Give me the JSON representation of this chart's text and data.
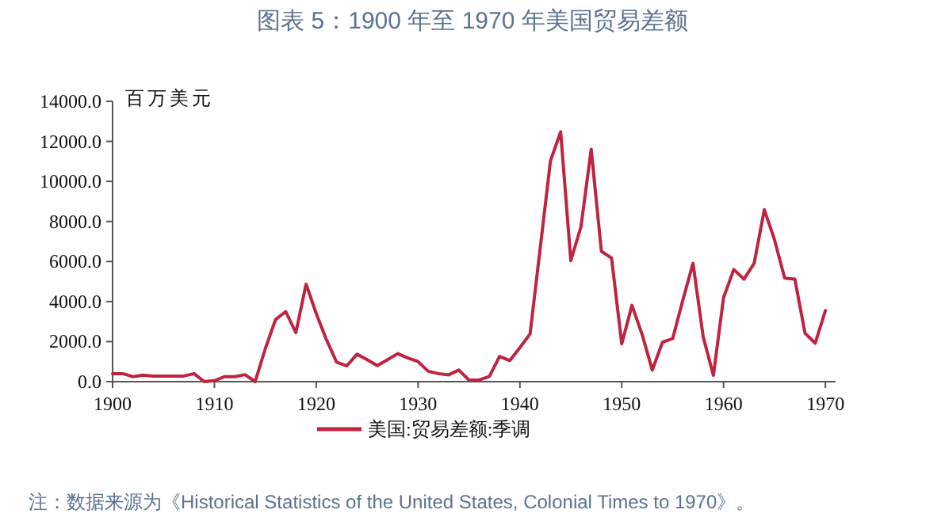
{
  "chart_data": {
    "type": "line",
    "title": "图表 5：1900 年至 1970 年美国贸易差额",
    "ylabel": "百万美元",
    "annotations": [
      "注：数据来源为《Historical Statistics of the United States, Colonial Times to 1970》。"
    ],
    "x": [
      1900,
      1901,
      1902,
      1903,
      1904,
      1905,
      1906,
      1907,
      1908,
      1909,
      1910,
      1911,
      1912,
      1913,
      1914,
      1915,
      1916,
      1917,
      1918,
      1919,
      1920,
      1921,
      1922,
      1923,
      1924,
      1925,
      1926,
      1927,
      1928,
      1929,
      1930,
      1931,
      1932,
      1933,
      1934,
      1935,
      1936,
      1937,
      1938,
      1939,
      1940,
      1941,
      1942,
      1943,
      1944,
      1945,
      1946,
      1947,
      1948,
      1949,
      1950,
      1951,
      1952,
      1953,
      1954,
      1955,
      1956,
      1957,
      1958,
      1959,
      1960,
      1961,
      1962,
      1963,
      1964,
      1965,
      1966,
      1967,
      1968,
      1969,
      1970
    ],
    "series": [
      {
        "name": "美国:贸易差额:季调",
        "color": "#c0233f",
        "values": [
          400,
          400,
          250,
          330,
          280,
          280,
          280,
          280,
          400,
          0,
          50,
          250,
          250,
          350,
          0,
          1650,
          3100,
          3500,
          2450,
          4870,
          3400,
          2100,
          970,
          790,
          1370,
          1100,
          800,
          1100,
          1400,
          1180,
          1000,
          520,
          400,
          340,
          580,
          80,
          80,
          260,
          1260,
          1050,
          1700,
          2390,
          6700,
          11030,
          12480,
          6040,
          7750,
          11610,
          6510,
          6170,
          1890,
          3810,
          2360,
          580,
          1970,
          2150,
          4070,
          5910,
          2230,
          320,
          4200,
          5600,
          5120,
          5910,
          8590,
          7090,
          5170,
          5120,
          2420,
          1920,
          3550
        ]
      }
    ],
    "xlim": [
      1900,
      1971
    ],
    "xticks": [
      1900,
      1910,
      1920,
      1930,
      1940,
      1950,
      1960,
      1970
    ],
    "ylim": [
      0,
      14000
    ],
    "yticks": [
      {
        "value": 0,
        "label": "0.0"
      },
      {
        "value": 2000,
        "label": "2000.0"
      },
      {
        "value": 4000,
        "label": "4000.0"
      },
      {
        "value": 6000,
        "label": "6000.0"
      },
      {
        "value": 8000,
        "label": "8000.0"
      },
      {
        "value": 10000,
        "label": "10000.0"
      },
      {
        "value": 12000,
        "label": "12000.0"
      },
      {
        "value": 14000,
        "label": "14000.0"
      }
    ],
    "legend": "bottom"
  }
}
